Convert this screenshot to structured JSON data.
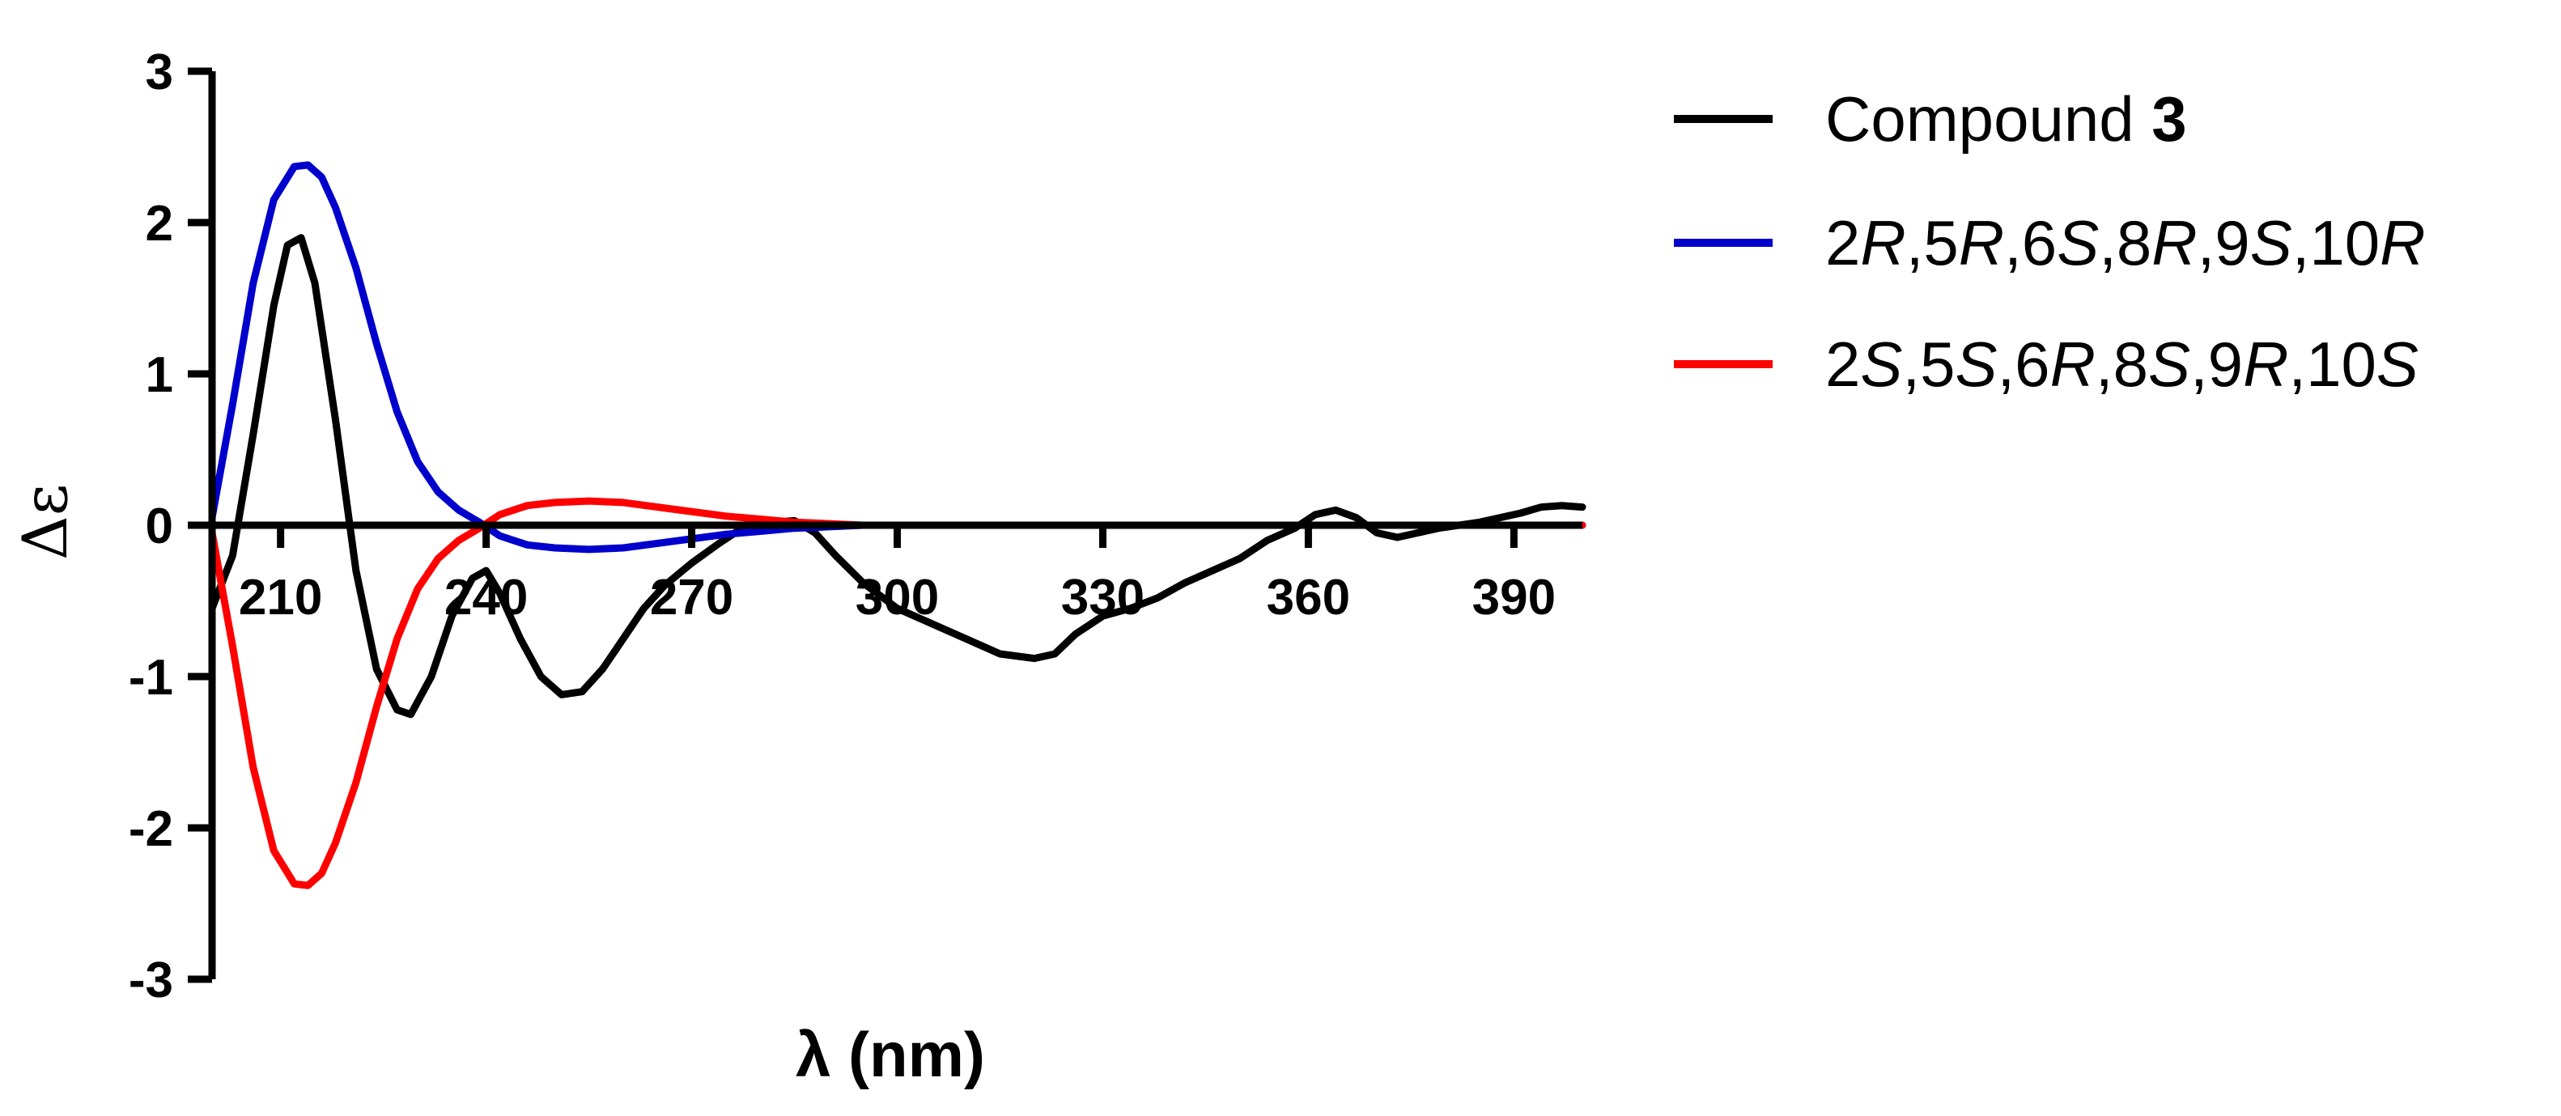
{
  "chart_data": {
    "type": "line",
    "title": "",
    "xlabel": "λ (nm)",
    "ylabel": "Δε",
    "xlim": [
      200,
      400
    ],
    "ylim": [
      -3,
      3
    ],
    "xticks": [
      210,
      240,
      270,
      300,
      330,
      360,
      390
    ],
    "yticks": [
      -3,
      -2,
      -1,
      0,
      1,
      2,
      3
    ],
    "grid": false,
    "legend_position": "right",
    "series": [
      {
        "name": "Compound 3",
        "color": "#000000",
        "x": [
          200,
          203,
          206,
          209,
          211,
          213,
          215,
          218,
          221,
          224,
          227,
          229,
          232,
          235,
          238,
          240,
          242,
          245,
          248,
          251,
          254,
          257,
          260,
          263,
          266,
          270,
          274,
          278,
          282,
          285,
          288,
          291,
          295,
          300,
          305,
          310,
          315,
          320,
          323,
          326,
          330,
          334,
          338,
          342,
          346,
          350,
          354,
          358,
          361,
          364,
          367,
          370,
          373,
          376,
          379,
          382,
          385,
          388,
          391,
          394,
          397,
          400
        ],
        "values": [
          -0.55,
          -0.2,
          0.6,
          1.45,
          1.85,
          1.9,
          1.6,
          0.7,
          -0.3,
          -0.95,
          -1.22,
          -1.25,
          -1.0,
          -0.6,
          -0.35,
          -0.3,
          -0.45,
          -0.75,
          -1.0,
          -1.12,
          -1.1,
          -0.95,
          -0.75,
          -0.55,
          -0.4,
          -0.25,
          -0.12,
          0.0,
          0.02,
          0.03,
          -0.05,
          -0.2,
          -0.38,
          -0.55,
          -0.65,
          -0.75,
          -0.85,
          -0.88,
          -0.85,
          -0.72,
          -0.6,
          -0.55,
          -0.48,
          -0.38,
          -0.3,
          -0.22,
          -0.1,
          -0.02,
          0.07,
          0.1,
          0.05,
          -0.05,
          -0.08,
          -0.05,
          -0.02,
          0.0,
          0.02,
          0.05,
          0.08,
          0.12,
          0.13,
          0.12
        ]
      },
      {
        "name": "2R,5R,6S,8R,9S,10R",
        "name_parts": [
          {
            "text": "2",
            "italic": false
          },
          {
            "text": "R",
            "italic": true
          },
          {
            "text": ",5",
            "italic": false
          },
          {
            "text": "R",
            "italic": true
          },
          {
            "text": ",6",
            "italic": false
          },
          {
            "text": "S",
            "italic": true
          },
          {
            "text": ",8",
            "italic": false
          },
          {
            "text": "R",
            "italic": true
          },
          {
            "text": ",9",
            "italic": false
          },
          {
            "text": "S",
            "italic": true
          },
          {
            "text": ",10",
            "italic": false
          },
          {
            "text": "R",
            "italic": true
          }
        ],
        "color": "#0000cc",
        "x": [
          200,
          203,
          206,
          209,
          212,
          214,
          216,
          218,
          221,
          224,
          227,
          230,
          233,
          236,
          239,
          242,
          246,
          250,
          255,
          260,
          265,
          270,
          275,
          280,
          285,
          290,
          295,
          300,
          310,
          320,
          340,
          360,
          380,
          400
        ],
        "values": [
          0.05,
          0.8,
          1.6,
          2.15,
          2.37,
          2.38,
          2.3,
          2.1,
          1.7,
          1.2,
          0.75,
          0.42,
          0.22,
          0.1,
          0.02,
          -0.07,
          -0.13,
          -0.15,
          -0.16,
          -0.15,
          -0.12,
          -0.09,
          -0.06,
          -0.04,
          -0.02,
          -0.01,
          0.0,
          0.0,
          0.0,
          0.0,
          0.0,
          0.0,
          0.0,
          0.0
        ]
      },
      {
        "name": "2S,5S,6R,8S,9R,10S",
        "name_parts": [
          {
            "text": "2",
            "italic": false
          },
          {
            "text": "S",
            "italic": true
          },
          {
            "text": ",5",
            "italic": false
          },
          {
            "text": "S",
            "italic": true
          },
          {
            "text": ",6",
            "italic": false
          },
          {
            "text": "R",
            "italic": true
          },
          {
            "text": ",8",
            "italic": false
          },
          {
            "text": "S",
            "italic": true
          },
          {
            "text": ",9",
            "italic": false
          },
          {
            "text": "R",
            "italic": true
          },
          {
            "text": ",10",
            "italic": false
          },
          {
            "text": "S",
            "italic": true
          }
        ],
        "color": "#ff0000",
        "x": [
          200,
          203,
          206,
          209,
          212,
          214,
          216,
          218,
          221,
          224,
          227,
          230,
          233,
          236,
          239,
          242,
          246,
          250,
          255,
          260,
          265,
          270,
          275,
          280,
          285,
          290,
          295,
          300,
          310,
          320,
          340,
          360,
          380,
          400
        ],
        "values": [
          -0.05,
          -0.8,
          -1.6,
          -2.15,
          -2.37,
          -2.38,
          -2.3,
          -2.1,
          -1.7,
          -1.2,
          -0.75,
          -0.42,
          -0.22,
          -0.1,
          -0.02,
          0.07,
          0.13,
          0.15,
          0.16,
          0.15,
          0.12,
          0.09,
          0.06,
          0.04,
          0.02,
          0.01,
          0.0,
          0.0,
          0.0,
          0.0,
          0.0,
          0.0,
          0.0,
          0.0
        ]
      }
    ]
  },
  "legend": {
    "compound_label": "Compound ",
    "compound_number": "3"
  }
}
